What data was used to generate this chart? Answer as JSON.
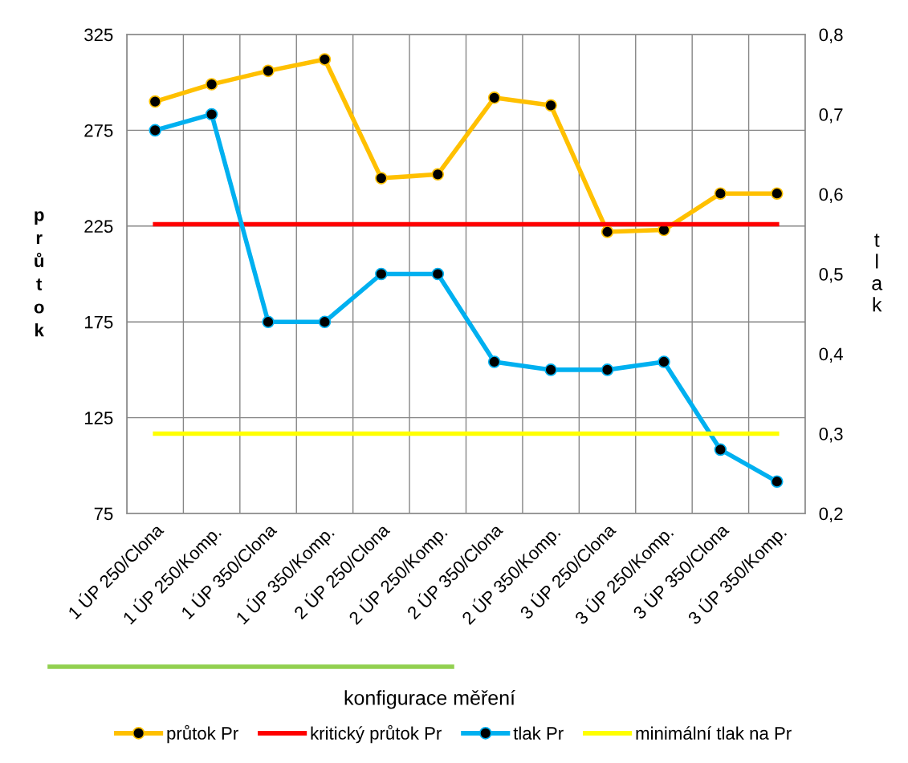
{
  "chart_data": {
    "type": "line",
    "xlabel": "konfigurace měření",
    "ylabel": "průtok",
    "y2label": "tlak",
    "categories": [
      "1 ÚP 250/Clona",
      "1 ÚP 250/Komp.",
      "1 ÚP 350/Clona",
      "1 ÚP 350/Komp.",
      "2 ÚP 250/Clona",
      "2 ÚP 250/Komp.",
      "2 ÚP 350/Clona",
      "2 ÚP 350/Komp.",
      "3 ÚP 250/Clona",
      "3 ÚP 250/Komp.",
      "3 ÚP 350/Clona",
      "3 ÚP 350/Komp."
    ],
    "series": [
      {
        "name": "průtok Pr",
        "color": "#ffc000",
        "marker": "circle",
        "values": [
          290,
          299,
          306,
          312,
          250,
          252,
          292,
          288,
          222,
          223,
          242,
          242
        ]
      },
      {
        "name": "kritický průtok Pr",
        "color": "#ff0000",
        "marker": "none",
        "values": [
          226,
          226,
          226,
          226,
          226,
          226,
          226,
          226,
          226,
          226,
          226,
          226
        ]
      },
      {
        "name": "tlak Pr",
        "color": "#00b0f0",
        "marker": "circle",
        "axis": "y2",
        "values": [
          0.68,
          0.7,
          0.44,
          0.44,
          0.5,
          0.5,
          0.39,
          0.38,
          0.38,
          0.39,
          0.28,
          0.24
        ]
      },
      {
        "name": "minimální tlak na Pr",
        "color": "#ffff00",
        "marker": "none",
        "axis": "y2",
        "values": [
          0.3,
          0.3,
          0.3,
          0.3,
          0.3,
          0.3,
          0.3,
          0.3,
          0.3,
          0.3,
          0.3,
          0.3
        ]
      }
    ],
    "ylim": [
      75,
      325
    ],
    "yticks": [
      75,
      125,
      175,
      225,
      275,
      325
    ],
    "y2lim": [
      0.2,
      0.8
    ],
    "y2ticks": [
      {
        "value": 0.2,
        "label": "0,2"
      },
      {
        "value": 0.3,
        "label": "0,3"
      },
      {
        "value": 0.4,
        "label": "0,4"
      },
      {
        "value": 0.5,
        "label": "0,5"
      },
      {
        "value": 0.6,
        "label": "0,6"
      },
      {
        "value": 0.7,
        "label": "0,7"
      },
      {
        "value": 0.8,
        "label": "0,8"
      }
    ],
    "grid": true,
    "legend": "bottom",
    "line_style": "solid"
  }
}
